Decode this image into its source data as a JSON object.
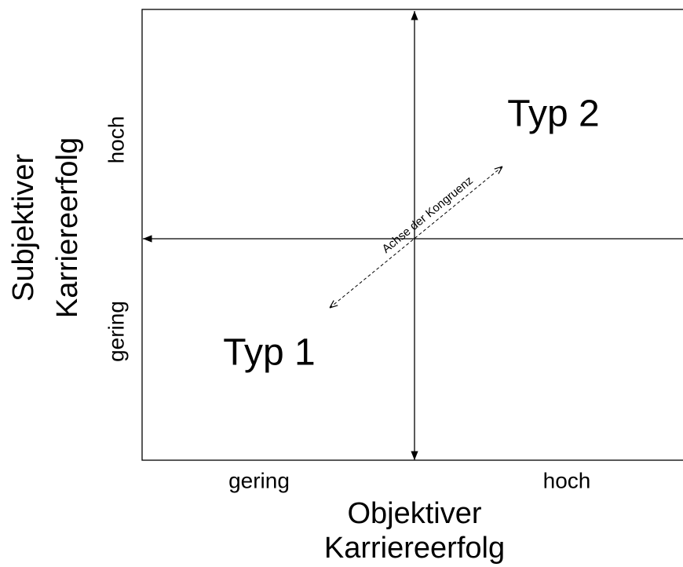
{
  "axes": {
    "y": {
      "label": [
        "Subjektiver",
        "Karriereerfolg"
      ],
      "low": "gering",
      "high": "hoch"
    },
    "x": {
      "label": [
        "Objektiver",
        "Karriereerfolg"
      ],
      "low": "gering",
      "high": "hoch"
    }
  },
  "quadrants": [
    {
      "label": "Typ 1"
    },
    {
      "label": "Typ 2"
    }
  ],
  "congruence_axis": {
    "label": "Achse der Kongruenz"
  }
}
